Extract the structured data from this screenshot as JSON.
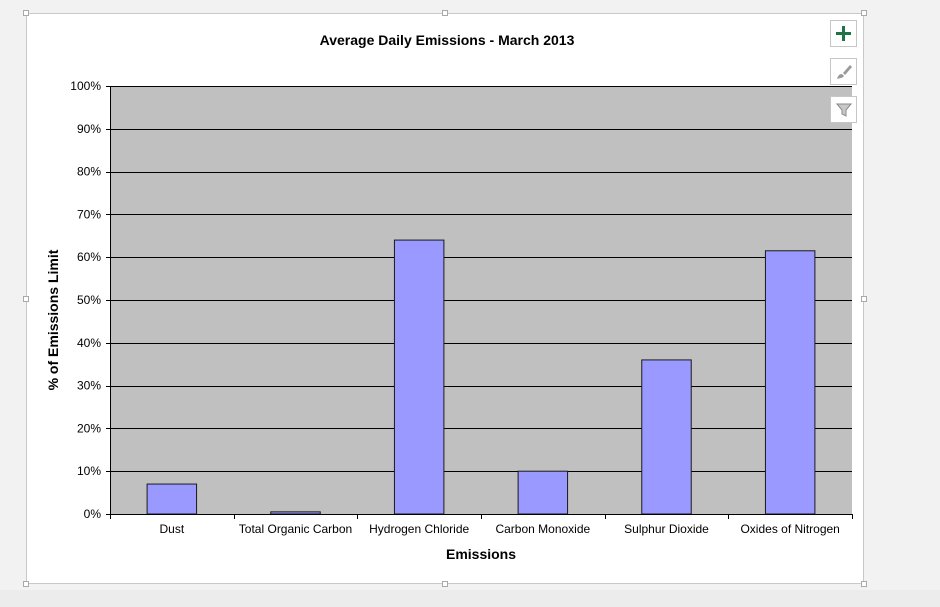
{
  "chart_data": {
    "type": "bar",
    "title": "Average Daily Emissions - March 2013",
    "xlabel": "Emissions",
    "ylabel": "% of Emissions Limit",
    "categories": [
      "Dust",
      "Total Organic Carbon",
      "Hydrogen Chloride",
      "Carbon Monoxide",
      "Sulphur Dioxide",
      "Oxides of Nitrogen"
    ],
    "values": [
      7,
      0.5,
      64,
      10,
      36,
      61.5
    ],
    "ylim": [
      0,
      100
    ],
    "yticks": [
      0,
      10,
      20,
      30,
      40,
      50,
      60,
      70,
      80,
      90,
      100
    ],
    "ytick_labels": [
      "0%",
      "10%",
      "20%",
      "30%",
      "40%",
      "50%",
      "60%",
      "70%",
      "80%",
      "90%",
      "100%"
    ],
    "grid": true,
    "legend": "none",
    "colors": {
      "bar": "#9999ff",
      "bar_border": "#1a1a1a",
      "plot_bg": "#c0c0c0",
      "gridline": "#000000"
    }
  },
  "chart_tools": {
    "add_icon": "plus-icon",
    "style_icon": "brush-icon",
    "filter_icon": "funnel-icon",
    "accent": "#217346"
  }
}
